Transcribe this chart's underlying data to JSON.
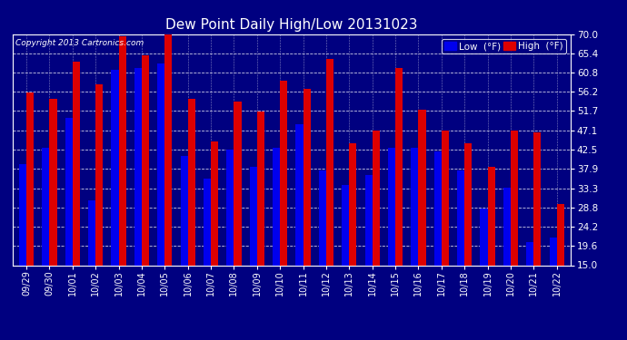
{
  "title": "Dew Point Daily High/Low 20131023",
  "copyright": "Copyright 2013 Cartronics.com",
  "legend_low": "Low  (°F)",
  "legend_high": "High  (°F)",
  "low_color": "#0000ee",
  "high_color": "#dd0000",
  "background_color": "#000080",
  "grid_color": "white",
  "ylim": [
    15.0,
    70.0
  ],
  "yticks": [
    15.0,
    19.6,
    24.2,
    28.8,
    33.3,
    37.9,
    42.5,
    47.1,
    51.7,
    56.2,
    60.8,
    65.4,
    70.0
  ],
  "dates": [
    "09/29",
    "09/30",
    "10/01",
    "10/02",
    "10/03",
    "10/04",
    "10/05",
    "10/06",
    "10/07",
    "10/08",
    "10/09",
    "10/10",
    "10/11",
    "10/12",
    "10/13",
    "10/14",
    "10/15",
    "10/16",
    "10/17",
    "10/18",
    "10/19",
    "10/20",
    "10/21",
    "10/22"
  ],
  "high_values": [
    56.0,
    54.5,
    63.5,
    58.0,
    69.5,
    65.0,
    70.0,
    54.5,
    44.5,
    54.0,
    51.5,
    59.0,
    57.0,
    64.0,
    44.0,
    47.0,
    62.0,
    52.0,
    47.0,
    44.0,
    38.5,
    47.0,
    46.5,
    29.5
  ],
  "low_values": [
    39.0,
    43.0,
    50.0,
    30.5,
    61.5,
    62.0,
    63.0,
    41.0,
    35.5,
    42.5,
    38.5,
    43.0,
    48.5,
    37.5,
    34.0,
    36.5,
    43.0,
    43.0,
    42.0,
    37.5,
    28.5,
    33.5,
    20.5,
    21.5
  ]
}
